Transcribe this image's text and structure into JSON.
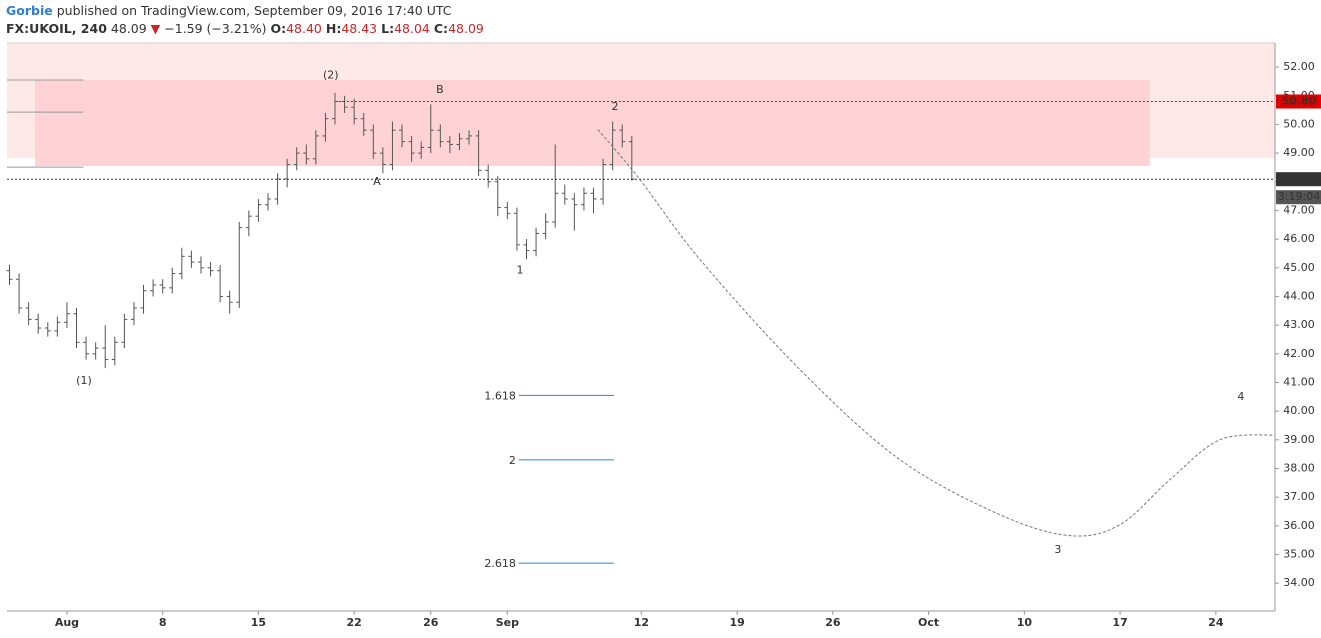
{
  "header": {
    "author": "Gorbie",
    "published": "published on TradingView.com, September 09, 2016 17:40 UTC",
    "symbol": "FX:UKOIL, 240",
    "last": "48.09",
    "arrow": "▼",
    "change": "−1.59 (−3.21%)",
    "o_label": "O:",
    "o": "48.40",
    "h_label": "H:",
    "h": "48.43",
    "l_label": "L:",
    "l": "48.04",
    "c_label": "C:",
    "c": "48.09"
  },
  "chart_data": {
    "type": "ohlc",
    "color": "#555555",
    "grid": false,
    "xlim": [
      -3.13,
      63.09
    ],
    "ylim": [
      33.03,
      52.84
    ],
    "xticks": [
      {
        "value": 0,
        "label": "Aug"
      },
      {
        "value": 5,
        "label": "8"
      },
      {
        "value": 10,
        "label": "15"
      },
      {
        "value": 15,
        "label": "22"
      },
      {
        "value": 19,
        "label": "26"
      },
      {
        "value": 23,
        "label": "Sep"
      },
      {
        "value": 30,
        "label": "12"
      },
      {
        "value": 35,
        "label": "19"
      },
      {
        "value": 40,
        "label": "26"
      },
      {
        "value": 45,
        "label": "Oct"
      },
      {
        "value": 50,
        "label": "10"
      },
      {
        "value": 55,
        "label": "17"
      },
      {
        "value": 60,
        "label": "24"
      }
    ],
    "yticks": [
      {
        "value": 34,
        "label": "34.00"
      },
      {
        "value": 35,
        "label": "35.00"
      },
      {
        "value": 36,
        "label": "36.00"
      },
      {
        "value": 37,
        "label": "37.00"
      },
      {
        "value": 38,
        "label": "38.00"
      },
      {
        "value": 39,
        "label": "39.00"
      },
      {
        "value": 40,
        "label": "40.00"
      },
      {
        "value": 41,
        "label": "41.00"
      },
      {
        "value": 42,
        "label": "42.00"
      },
      {
        "value": 43,
        "label": "43.00"
      },
      {
        "value": 44,
        "label": "44.00"
      },
      {
        "value": 45,
        "label": "45.00"
      },
      {
        "value": 46,
        "label": "46.00"
      },
      {
        "value": 47,
        "label": "47.00"
      },
      {
        "value": 48,
        "label": "48.00"
      },
      {
        "value": 49,
        "label": "49.00"
      },
      {
        "value": 50,
        "label": "50.00"
      },
      {
        "value": 51,
        "label": "51.00"
      },
      {
        "value": 52,
        "label": "52.00"
      }
    ],
    "x": [
      -3,
      -2.5,
      -2,
      -1.5,
      -1,
      -0.5,
      0,
      0.5,
      1,
      1.5,
      2,
      2.5,
      3,
      3.5,
      4,
      4.5,
      5,
      5.5,
      6,
      6.5,
      7,
      7.5,
      8,
      8.5,
      9,
      9.5,
      10,
      10.5,
      11,
      11.5,
      12,
      12.5,
      13,
      13.5,
      14,
      14.5,
      15,
      15.5,
      16,
      16.5,
      17,
      17.5,
      18,
      18.5,
      19,
      19.5,
      20,
      20.5,
      21,
      21.5,
      22,
      22.5,
      23,
      23.5,
      24,
      24.5,
      25,
      25.5,
      26,
      26.5,
      27,
      27.5,
      28,
      28.5,
      29,
      29.5
    ],
    "open": [
      44.9,
      44.6,
      43.6,
      43.2,
      42.9,
      42.8,
      43.1,
      43.4,
      42.4,
      42.0,
      42.2,
      41.8,
      42.4,
      43.2,
      43.6,
      44.2,
      44.4,
      44.3,
      44.8,
      45.4,
      45.2,
      45.0,
      44.9,
      44.0,
      43.8,
      46.4,
      46.8,
      47.2,
      47.4,
      48.1,
      48.6,
      49.0,
      48.8,
      49.6,
      50.2,
      50.8,
      50.6,
      50.2,
      49.8,
      49.0,
      48.6,
      49.8,
      49.4,
      49.0,
      49.2,
      49.8,
      49.4,
      49.3,
      49.5,
      49.6,
      48.4,
      48.0,
      47.1,
      46.9,
      45.8,
      45.6,
      46.2,
      46.6,
      47.6,
      47.4,
      47.2,
      47.6,
      47.4,
      48.6,
      49.8,
      49.4
    ],
    "high": [
      45.1,
      44.8,
      43.8,
      43.4,
      43.1,
      43.3,
      43.8,
      43.6,
      42.6,
      42.4,
      43.0,
      42.6,
      43.4,
      43.8,
      44.4,
      44.6,
      44.6,
      45.0,
      45.7,
      45.6,
      45.4,
      45.2,
      45.1,
      44.2,
      46.6,
      47.0,
      47.4,
      47.6,
      48.3,
      48.8,
      49.2,
      49.3,
      49.8,
      50.4,
      51.1,
      51.0,
      50.9,
      50.4,
      50.0,
      49.2,
      50.1,
      50.0,
      49.6,
      49.4,
      50.7,
      50.0,
      49.6,
      49.7,
      49.8,
      49.8,
      48.6,
      48.2,
      47.3,
      47.1,
      46.0,
      46.4,
      46.9,
      49.3,
      47.9,
      47.6,
      47.8,
      47.8,
      48.8,
      50.1,
      50.0,
      49.6
    ],
    "low": [
      44.4,
      43.4,
      43.0,
      42.7,
      42.6,
      42.6,
      42.9,
      42.2,
      41.8,
      41.8,
      41.5,
      41.6,
      42.2,
      43.0,
      43.4,
      44.0,
      44.1,
      44.1,
      44.6,
      45.0,
      44.8,
      44.7,
      43.8,
      43.4,
      43.6,
      46.1,
      46.6,
      47.0,
      47.2,
      47.8,
      48.4,
      48.6,
      48.6,
      49.4,
      50.0,
      50.4,
      50.0,
      49.6,
      48.8,
      48.3,
      48.4,
      49.2,
      48.7,
      48.8,
      49.0,
      49.2,
      49.0,
      49.1,
      49.3,
      48.2,
      47.8,
      46.8,
      46.7,
      45.6,
      45.3,
      45.4,
      46.0,
      46.4,
      47.2,
      46.3,
      47.0,
      46.9,
      47.2,
      48.4,
      49.2,
      48.04
    ],
    "close": [
      44.6,
      43.6,
      43.2,
      42.9,
      42.8,
      43.1,
      43.4,
      42.4,
      42.0,
      42.2,
      41.8,
      42.4,
      43.2,
      43.6,
      44.2,
      44.4,
      44.3,
      44.8,
      45.4,
      45.2,
      45.0,
      44.9,
      44.0,
      43.8,
      46.4,
      46.8,
      47.2,
      47.4,
      48.1,
      48.6,
      49.0,
      48.8,
      49.6,
      50.2,
      50.8,
      50.6,
      50.2,
      49.8,
      49.0,
      48.6,
      49.8,
      49.4,
      49.0,
      49.2,
      49.8,
      49.4,
      49.3,
      49.5,
      49.6,
      48.4,
      48.0,
      47.1,
      46.9,
      45.8,
      45.6,
      46.2,
      46.6,
      47.6,
      47.4,
      47.2,
      47.6,
      47.4,
      48.6,
      49.8,
      49.4,
      48.09
    ],
    "zones": [
      {
        "yrange": [
          48.83,
          52.84
        ],
        "color": "#ffe8e8"
      },
      {
        "xrange": [
          -1.67,
          56.55
        ],
        "yrange": [
          48.55,
          51.55
        ],
        "color": "#ffd3d5"
      }
    ],
    "segments": [
      {
        "value": 51.55,
        "xrange": [
          -3.13,
          0.85
        ],
        "color": "#999999"
      },
      {
        "value": 50.43,
        "xrange": [
          -3.13,
          0.85
        ],
        "color": "#999999"
      },
      {
        "value": 48.51,
        "xrange": [
          -3.13,
          0.85
        ],
        "color": "#999999"
      }
    ],
    "price_lines": [
      {
        "value": 50.8,
        "label": "50.80",
        "color": "#e00000",
        "xstart": 14.2
      },
      {
        "value": 48.09,
        "label": "48.09",
        "color": "#333333",
        "timer": "3:19:04"
      }
    ],
    "fib_levels": [
      {
        "value": 40.55,
        "label": "1.618",
        "xrange": [
          23.6,
          28.56
        ]
      },
      {
        "value": 38.3,
        "label": "2",
        "xrange": [
          23.6,
          28.56
        ]
      },
      {
        "value": 34.7,
        "label": "2.618",
        "xrange": [
          23.6,
          28.56
        ]
      }
    ],
    "fib_color": "#3d7bd4",
    "projection": {
      "x": [
        27.73,
        29.92,
        33.06,
        38.28,
        43.5,
        48.72,
        52.38,
        54.99,
        57.6,
        60.21,
        63.08
      ],
      "y": [
        49.82,
        48.08,
        45.29,
        41.45,
        38.31,
        36.39,
        35.66,
        36.04,
        37.61,
        39.0,
        39.17
      ]
    },
    "annotations": [
      {
        "text": "(2)",
        "x": 13.78,
        "y": 51.7,
        "color": "#2d4fa8"
      },
      {
        "text": "(1)",
        "x": 0.89,
        "y": 41.05,
        "color": "#2d4fa8"
      },
      {
        "text": "A",
        "x": 16.19,
        "y": 48.0,
        "color": "#333333"
      },
      {
        "text": "B",
        "x": 19.48,
        "y": 51.2,
        "color": "#333333"
      },
      {
        "text": "1",
        "x": 23.66,
        "y": 44.9,
        "color": "#333333"
      },
      {
        "text": "2",
        "x": 28.62,
        "y": 50.6,
        "color": "#333333"
      },
      {
        "text": "3",
        "x": 51.75,
        "y": 35.15,
        "color": "#333333"
      },
      {
        "text": "4",
        "x": 61.31,
        "y": 40.5,
        "color": "#333333"
      }
    ]
  }
}
